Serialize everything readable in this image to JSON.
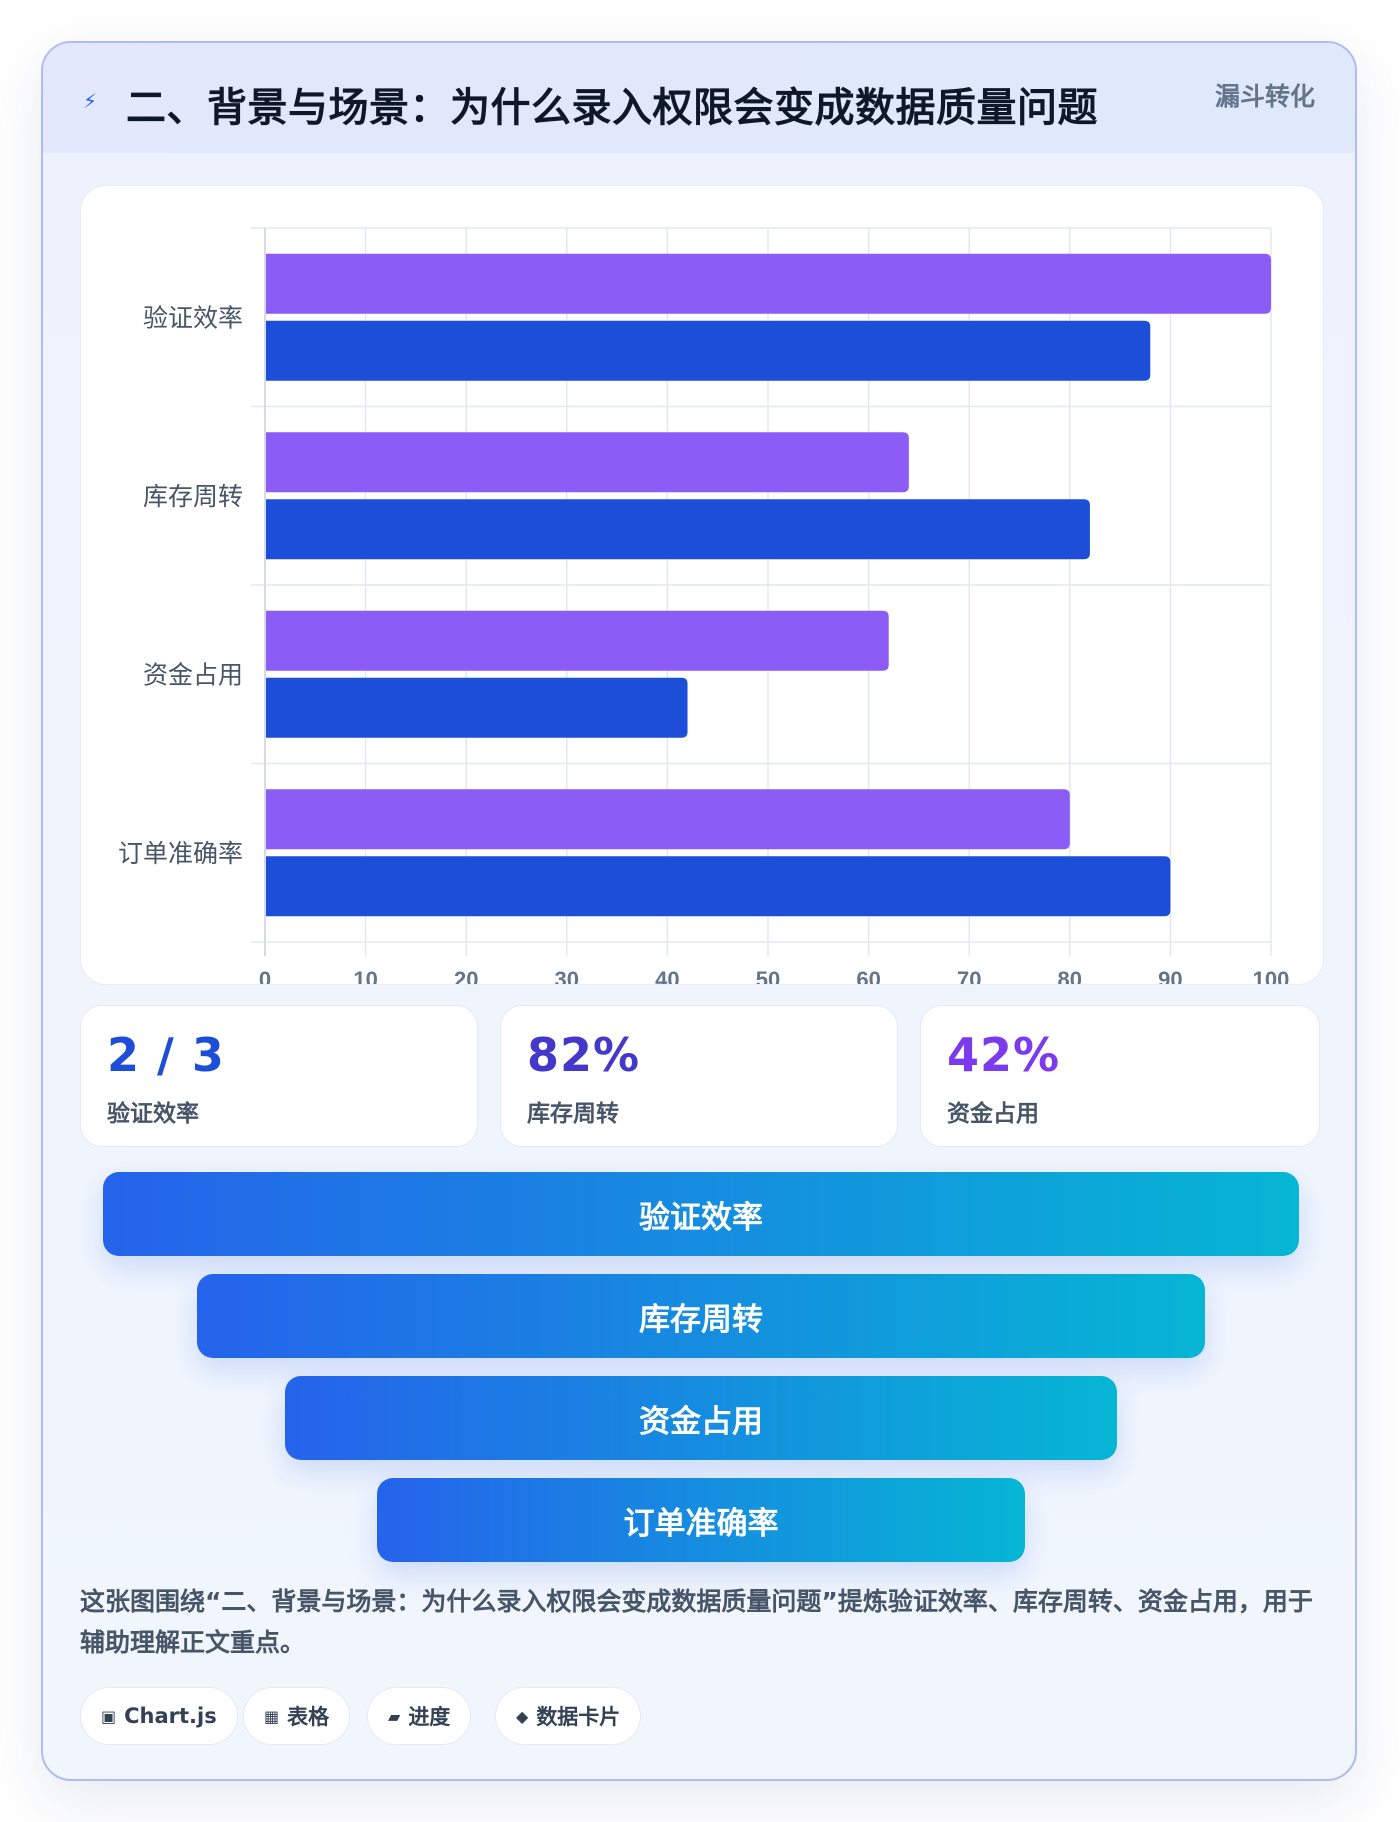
{
  "header": {
    "title": "二、背景与场景：为什么录入权限会变成数据质量问题",
    "icon": "lightning-icon",
    "tag": "漏斗转化"
  },
  "chart_data": {
    "type": "bar",
    "orientation": "horizontal",
    "categories": [
      "验证效率",
      "库存周转",
      "资金占用",
      "订单准确率"
    ],
    "series": [
      {
        "values": [
          100,
          64,
          62,
          80
        ],
        "color": "#8b5cf6"
      },
      {
        "values": [
          88,
          82,
          42,
          90
        ],
        "color": "#1d4ed8"
      }
    ],
    "xlim": [
      0,
      100
    ],
    "xticks": [
      "0",
      "10",
      "20",
      "30",
      "40",
      "50",
      "60",
      "70",
      "80",
      "90",
      "100"
    ],
    "grid": true,
    "legend": "none"
  },
  "stats": [
    {
      "value": "2 / 3",
      "label": "验证效率",
      "color": "#1d4ed8"
    },
    {
      "value": "82%",
      "label": "库存周转",
      "color": "#4338ca"
    },
    {
      "value": "42%",
      "label": "资金占用",
      "color": "#7c3aed"
    }
  ],
  "funnel": [
    "验证效率",
    "库存周转",
    "资金占用",
    "订单准确率"
  ],
  "caption": "这张图围绕“二、背景与场景：为什么录入权限会变成数据质量问题”提炼验证效率、库存周转、资金占用，用于辅助理解正文重点。",
  "chips": [
    {
      "icon": "▣",
      "label": "Chart.js"
    },
    {
      "icon": "▦",
      "label": "表格"
    },
    {
      "icon": "▰",
      "label": "进度"
    },
    {
      "icon": "◆",
      "label": "数据卡片"
    }
  ]
}
